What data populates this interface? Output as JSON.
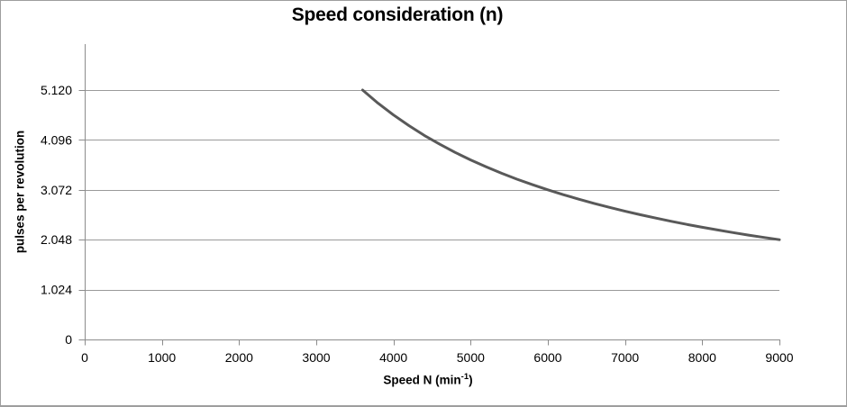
{
  "chart_data": {
    "type": "line",
    "title": "Speed consideration (n)",
    "ylabel": "pulses per revolution",
    "xlabel_parts": [
      "Speed N (min",
      "-1",
      ")"
    ],
    "xlim": [
      0,
      9000
    ],
    "ylim": [
      0,
      6.06
    ],
    "x_ticks": [
      {
        "value": 0,
        "label": "0"
      },
      {
        "value": 1000,
        "label": "1000"
      },
      {
        "value": 2000,
        "label": "2000"
      },
      {
        "value": 3000,
        "label": "3000"
      },
      {
        "value": 4000,
        "label": "4000"
      },
      {
        "value": 5000,
        "label": "5000"
      },
      {
        "value": 6000,
        "label": "6000"
      },
      {
        "value": 7000,
        "label": "7000"
      },
      {
        "value": 8000,
        "label": "8000"
      },
      {
        "value": 9000,
        "label": "9000"
      }
    ],
    "y_ticks": [
      {
        "value": 0,
        "label": "0"
      },
      {
        "value": 1.024,
        "label": "1.024"
      },
      {
        "value": 2.048,
        "label": "2.048"
      },
      {
        "value": 3.072,
        "label": "3.072"
      },
      {
        "value": 4.096,
        "label": "4.096"
      },
      {
        "value": 5.12,
        "label": "5.120"
      }
    ],
    "grid": true,
    "legend": false,
    "series": [
      {
        "name": "pulses per revolution",
        "color": "#595959",
        "width": 3,
        "points": [
          [
            3600,
            5.12
          ],
          [
            3800,
            4.85
          ],
          [
            4000,
            4.608
          ],
          [
            4200,
            4.389
          ],
          [
            4400,
            4.189
          ],
          [
            4600,
            4.007
          ],
          [
            4800,
            3.84
          ],
          [
            5000,
            3.686
          ],
          [
            5200,
            3.545
          ],
          [
            5400,
            3.413
          ],
          [
            5600,
            3.291
          ],
          [
            5800,
            3.178
          ],
          [
            6000,
            3.072
          ],
          [
            6200,
            2.973
          ],
          [
            6400,
            2.88
          ],
          [
            6600,
            2.793
          ],
          [
            6800,
            2.711
          ],
          [
            7000,
            2.633
          ],
          [
            7200,
            2.56
          ],
          [
            7400,
            2.491
          ],
          [
            7600,
            2.425
          ],
          [
            7800,
            2.363
          ],
          [
            8000,
            2.304
          ],
          [
            8200,
            2.248
          ],
          [
            8400,
            2.194
          ],
          [
            8600,
            2.143
          ],
          [
            8800,
            2.095
          ],
          [
            9000,
            2.048
          ]
        ]
      }
    ],
    "colors": {
      "gridline": "#9a9a9a",
      "axis": "#8c8c8c",
      "tick": "#8c8c8c",
      "text": "#000000",
      "background": "#ffffff"
    }
  }
}
